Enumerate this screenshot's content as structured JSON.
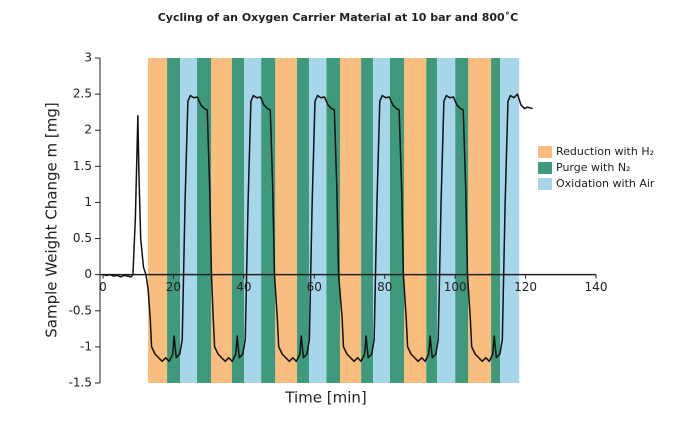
{
  "chart_data": {
    "type": "line",
    "title": "Cycling of an Oxygen Carrier Material at 10 bar and 800˚C",
    "x_label": "Time [min]",
    "y_label": "Sample Weight Change m [mg]",
    "xlim": [
      0,
      140
    ],
    "ylim": [
      -1.5,
      3
    ],
    "xticks": [
      0,
      20,
      40,
      60,
      80,
      100,
      120,
      140
    ],
    "yticks": [
      -1.5,
      -1,
      -0.5,
      0,
      0.5,
      1,
      1.5,
      2,
      2.5,
      3
    ],
    "line_color": "#111111",
    "phases": [
      {
        "name": "Reduction with H₂",
        "color": "#f9bd7f",
        "intervals": [
          [
            12.8,
            18.2
          ],
          [
            30.7,
            36.6
          ],
          [
            48.9,
            55.1
          ],
          [
            67.3,
            73.3
          ],
          [
            85.5,
            91.8
          ],
          [
            103.7,
            110.2
          ]
        ]
      },
      {
        "name": "Purge with N₂",
        "color": "#3f9a7c",
        "intervals": [
          [
            18.2,
            21.9
          ],
          [
            26.7,
            30.7
          ],
          [
            36.6,
            40.1
          ],
          [
            44.9,
            48.9
          ],
          [
            55.1,
            58.5
          ],
          [
            63.4,
            67.3
          ],
          [
            73.3,
            76.7
          ],
          [
            81.5,
            85.5
          ],
          [
            91.8,
            94.9
          ],
          [
            100.0,
            103.7
          ],
          [
            110.2,
            112.8
          ]
        ]
      },
      {
        "name": "Oxidation with Air",
        "color": "#a7d6ea",
        "intervals": [
          [
            21.9,
            26.7
          ],
          [
            40.1,
            44.9
          ],
          [
            58.5,
            63.4
          ],
          [
            76.7,
            81.5
          ],
          [
            94.9,
            100.0
          ],
          [
            112.8,
            118.2
          ]
        ]
      }
    ],
    "x": [
      0,
      1,
      2,
      3,
      4,
      5,
      6,
      7,
      8,
      8.5,
      9.2,
      9.6,
      9.9,
      10.2,
      10.7,
      11.5,
      12.2,
      12.8,
      13.4,
      13.8,
      14.8,
      15.8,
      16.8,
      17.8,
      18.8,
      19.8,
      20.2,
      20.8,
      21.8,
      22.5,
      23.3,
      24.1,
      24.8,
      25.8,
      26.8,
      27.8,
      28.8,
      29.6,
      30.3,
      30.8,
      31.3,
      31.7,
      32.7,
      33.7,
      34.7,
      35.7,
      36.7,
      37.7,
      38.1,
      38.7,
      39.7,
      40.4,
      41.2,
      42.0,
      42.7,
      43.7,
      44.7,
      45.7,
      46.7,
      47.5,
      48.2,
      48.7,
      49.5,
      49.9,
      50.9,
      51.9,
      52.9,
      53.9,
      54.9,
      55.9,
      56.3,
      56.9,
      57.9,
      58.6,
      59.4,
      60.2,
      60.9,
      61.9,
      62.9,
      63.9,
      64.9,
      65.7,
      66.4,
      66.9,
      67.9,
      68.3,
      69.3,
      70.3,
      71.3,
      72.3,
      73.3,
      74.3,
      74.7,
      75.3,
      76.3,
      77.0,
      77.8,
      78.6,
      79.3,
      80.3,
      81.3,
      82.3,
      83.3,
      84.1,
      84.8,
      85.3,
      86.1,
      86.5,
      87.5,
      88.5,
      89.5,
      90.5,
      91.5,
      92.5,
      92.9,
      93.5,
      94.5,
      95.2,
      96.0,
      96.8,
      97.5,
      98.5,
      99.5,
      100.5,
      101.5,
      102.3,
      103.0,
      103.5,
      104.3,
      104.7,
      105.7,
      106.7,
      107.7,
      108.7,
      109.7,
      110.7,
      111.1,
      111.7,
      112.7,
      113.4,
      114.2,
      115.0,
      115.7,
      116.7,
      117.7,
      118.7,
      119.7,
      120.5,
      122
    ],
    "values": [
      0,
      -0.01,
      0,
      -0.02,
      -0.01,
      -0.03,
      -0.01,
      -0.02,
      -0.03,
      0,
      0.8,
      1.6,
      2.2,
      1.4,
      0.5,
      0.1,
      0,
      -0.2,
      -0.6,
      -1.0,
      -1.1,
      -1.15,
      -1.2,
      -1.15,
      -1.2,
      -1.1,
      -0.85,
      -1.15,
      -1.1,
      -0.9,
      1.0,
      2.4,
      2.48,
      2.45,
      2.46,
      2.35,
      2.3,
      2.28,
      1.2,
      0,
      -0.6,
      -1.0,
      -1.1,
      -1.15,
      -1.2,
      -1.15,
      -1.2,
      -1.1,
      -0.85,
      -1.15,
      -1.1,
      -0.9,
      1.0,
      2.4,
      2.48,
      2.45,
      2.46,
      2.35,
      2.3,
      2.28,
      1.2,
      0,
      -0.6,
      -1.0,
      -1.1,
      -1.15,
      -1.2,
      -1.15,
      -1.2,
      -1.1,
      -0.85,
      -1.15,
      -1.1,
      -0.9,
      1.0,
      2.4,
      2.48,
      2.45,
      2.46,
      2.35,
      2.3,
      2.28,
      1.2,
      0,
      -0.6,
      -1.0,
      -1.1,
      -1.15,
      -1.2,
      -1.15,
      -1.2,
      -1.1,
      -0.85,
      -1.15,
      -1.1,
      -0.9,
      1.0,
      2.4,
      2.48,
      2.45,
      2.46,
      2.35,
      2.3,
      2.28,
      1.2,
      0,
      -0.6,
      -1.0,
      -1.1,
      -1.15,
      -1.2,
      -1.15,
      -1.2,
      -1.1,
      -0.85,
      -1.15,
      -1.1,
      -0.9,
      1.0,
      2.4,
      2.48,
      2.45,
      2.46,
      2.35,
      2.3,
      2.28,
      1.2,
      0,
      -0.6,
      -1.0,
      -1.1,
      -1.15,
      -1.2,
      -1.15,
      -1.2,
      -1.1,
      -0.85,
      -1.15,
      -1.1,
      -0.9,
      1.0,
      2.4,
      2.48,
      2.45,
      2.5,
      2.35,
      2.3,
      2.32,
      2.3
    ]
  }
}
